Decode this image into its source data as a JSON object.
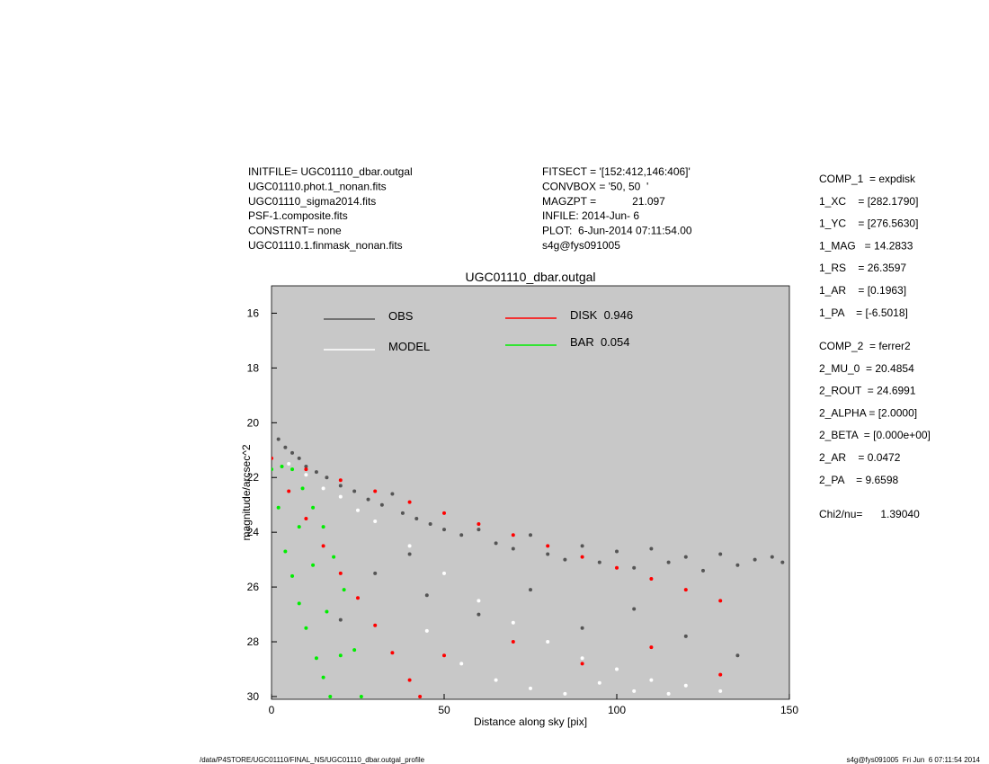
{
  "header": {
    "left": [
      "INITFILE= UGC01110_dbar.outgal",
      "UGC01110.phot.1_nonan.fits",
      "UGC01110_sigma2014.fits",
      "PSF-1.composite.fits",
      "CONSTRNT= none",
      "UGC01110.1.finmask_nonan.fits"
    ],
    "middle": [
      "FITSECT = '[152:412,146:406]'",
      "CONVBOX = '50, 50  '",
      "MAGZPT =            21.097",
      "INFILE: 2014-Jun- 6",
      "PLOT:  6-Jun-2014 07:11:54.00",
      "s4g@fys091005"
    ]
  },
  "fit_parameters": {
    "comp1": [
      "COMP_1  = expdisk",
      "1_XC    = [282.1790]",
      "1_YC    = [276.5630]",
      "1_MAG   = 14.2833",
      "1_RS    = 26.3597",
      "1_AR    = [0.1963]",
      "1_PA    = [-6.5018]"
    ],
    "comp2": [
      "COMP_2  = ferrer2",
      "2_MU_0  = 20.4854",
      "2_ROUT  = 24.6991",
      "2_ALPHA = [2.0000]",
      "2_BETA  = [0.000e+00]",
      "2_AR    = 0.0472",
      "2_PA    = 9.6598"
    ],
    "chi2": "Chi2/nu=      1.39040"
  },
  "footer": {
    "left": "/data/P4STORE/UGC01110/FINAL_NS/UGC01110_dbar.outgal_profile",
    "right": "s4g@fys091005  Fri Jun  6 07:11:54 2014"
  },
  "chart_data": {
    "type": "scatter",
    "title": "UGC01110_dbar.outgal",
    "x_label": "Distance along sky [pix]",
    "y_label": "magnitude/arcsec^2",
    "xlim": [
      0,
      150
    ],
    "xticks": [
      0,
      50,
      100,
      150
    ],
    "ylim": [
      30.1,
      15
    ],
    "yticks": [
      16,
      18,
      20,
      22,
      24,
      26,
      28,
      30
    ],
    "y_inverted": true,
    "background": "#c8c8c8",
    "series": [
      {
        "name": "OBS",
        "color": "#555555",
        "x": [
          2,
          4,
          6,
          8,
          10,
          13,
          16,
          20,
          24,
          28,
          32,
          35,
          38,
          42,
          46,
          50,
          55,
          60,
          65,
          70,
          75,
          80,
          85,
          90,
          95,
          100,
          105,
          110,
          115,
          120,
          125,
          130,
          135,
          140,
          145,
          148,
          30,
          45,
          60,
          75,
          90,
          105,
          120,
          135,
          20,
          40
        ],
        "values": [
          20.6,
          20.9,
          21.1,
          21.3,
          21.6,
          21.8,
          22.0,
          22.3,
          22.5,
          22.8,
          23.0,
          22.6,
          23.3,
          23.5,
          23.7,
          23.9,
          24.1,
          23.9,
          24.4,
          24.6,
          24.1,
          24.8,
          25.0,
          24.5,
          25.1,
          24.7,
          25.3,
          24.6,
          25.1,
          24.9,
          25.4,
          24.8,
          25.2,
          25.0,
          24.9,
          25.1,
          25.5,
          26.3,
          27.0,
          26.1,
          27.5,
          26.8,
          27.8,
          28.5,
          27.2,
          24.8
        ]
      },
      {
        "name": "MODEL",
        "color": "#ffffff",
        "x": [
          5,
          10,
          15,
          20,
          25,
          30,
          40,
          50,
          60,
          70,
          80,
          90,
          100,
          110,
          120,
          130,
          45,
          55,
          65,
          75,
          85,
          95,
          105,
          115
        ],
        "values": [
          21.5,
          21.9,
          22.4,
          22.7,
          23.2,
          23.6,
          24.5,
          25.5,
          26.5,
          27.3,
          28.0,
          28.6,
          29.0,
          29.4,
          29.6,
          29.8,
          27.6,
          28.8,
          29.4,
          29.7,
          29.9,
          29.5,
          29.8,
          29.9
        ]
      },
      {
        "name": "DISK  0.946",
        "color": "#ff0000",
        "x": [
          0,
          10,
          20,
          30,
          40,
          50,
          60,
          70,
          80,
          90,
          100,
          110,
          120,
          130,
          5,
          10,
          15,
          20,
          25,
          30,
          35,
          40,
          43,
          50,
          70,
          90,
          110,
          130
        ],
        "values": [
          21.3,
          21.7,
          22.1,
          22.5,
          22.9,
          23.3,
          23.7,
          24.1,
          24.5,
          24.9,
          25.3,
          25.7,
          26.1,
          26.5,
          22.5,
          23.5,
          24.5,
          25.5,
          26.4,
          27.4,
          28.4,
          29.4,
          30.0,
          28.5,
          28.0,
          28.8,
          28.2,
          29.2
        ]
      },
      {
        "name": "BAR  0.054",
        "color": "#00ee00",
        "x": [
          0,
          3,
          6,
          9,
          12,
          15,
          18,
          21,
          24,
          26,
          2,
          4,
          6,
          8,
          10,
          13,
          15,
          17,
          8,
          12,
          16,
          20
        ],
        "values": [
          21.7,
          21.6,
          21.7,
          22.4,
          23.1,
          23.8,
          24.9,
          26.1,
          28.3,
          30.0,
          23.1,
          24.7,
          25.6,
          26.6,
          27.5,
          28.6,
          29.3,
          30.0,
          23.8,
          25.2,
          26.9,
          28.5
        ]
      }
    ]
  }
}
